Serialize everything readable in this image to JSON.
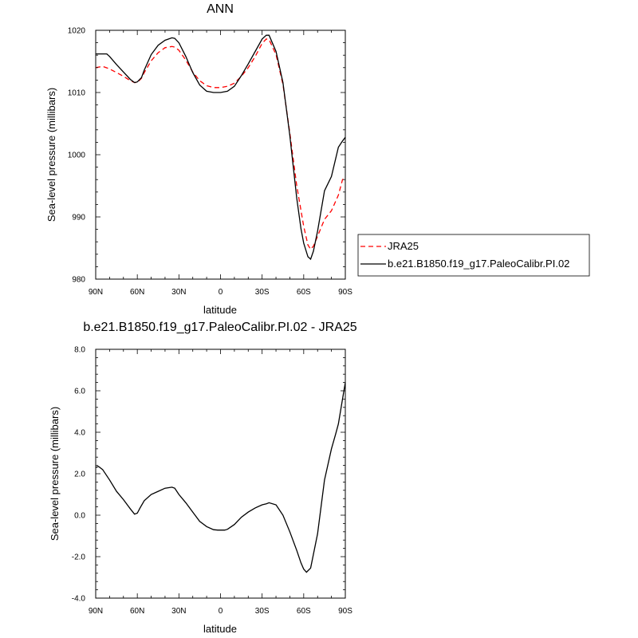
{
  "chart_data": [
    {
      "type": "line",
      "title": "ANN",
      "xlabel": "latitude",
      "ylabel": "Sea-level pressure (millibars)",
      "x_ticks": [
        "90N",
        "60N",
        "30N",
        "0",
        "30S",
        "60S",
        "90S"
      ],
      "y_ticks": [
        "980",
        "990",
        "1000",
        "1010",
        "1020"
      ],
      "xlim": [
        90,
        -90
      ],
      "ylim": [
        980,
        1020
      ],
      "legend_position": "right",
      "series": [
        {
          "name": "JRA25",
          "color": "#ff0000",
          "dash": "dashed",
          "x": [
            90,
            85,
            80,
            75,
            70,
            65,
            62,
            60,
            57,
            55,
            50,
            45,
            40,
            35,
            33,
            30,
            25,
            20,
            15,
            10,
            5,
            0,
            -5,
            -10,
            -15,
            -20,
            -25,
            -30,
            -33,
            -35,
            -40,
            -45,
            -50,
            -55,
            -60,
            -63,
            -65,
            -67,
            -70,
            -75,
            -80,
            -85,
            -88,
            -90
          ],
          "y": [
            1014,
            1014.2,
            1013.8,
            1013.2,
            1012.6,
            1011.9,
            1011.6,
            1011.6,
            1012.3,
            1013.2,
            1015.1,
            1016.4,
            1017.2,
            1017.4,
            1017.3,
            1016.8,
            1015.2,
            1013.3,
            1011.9,
            1011.1,
            1010.8,
            1010.8,
            1011.0,
            1011.5,
            1012.6,
            1014.0,
            1015.8,
            1017.9,
            1018.6,
            1018.5,
            1016.1,
            1011.3,
            1003.5,
            995.0,
            988.5,
            985.5,
            984.8,
            985.3,
            986.9,
            989.6,
            991.0,
            993.5,
            996.0,
            996.3
          ]
        },
        {
          "name": "b.e21.B1850.f19_g17.PaleoCalibr.PI.02",
          "color": "#000000",
          "dash": "solid",
          "x": [
            90,
            85,
            82,
            80,
            75,
            70,
            65,
            62,
            60,
            57,
            55,
            50,
            45,
            40,
            35,
            33,
            30,
            25,
            20,
            15,
            10,
            5,
            0,
            -5,
            -10,
            -15,
            -20,
            -25,
            -30,
            -33,
            -35,
            -40,
            -45,
            -50,
            -55,
            -58,
            -60,
            -63,
            -65,
            -67,
            -70,
            -75,
            -80,
            -85,
            -88,
            -90
          ],
          "y": [
            1016.2,
            1016.2,
            1016.2,
            1015.8,
            1014.5,
            1013.3,
            1012.1,
            1011.6,
            1011.7,
            1012.4,
            1013.6,
            1016.1,
            1017.6,
            1018.4,
            1018.8,
            1018.7,
            1018.0,
            1015.8,
            1013.2,
            1011.2,
            1010.2,
            1010.0,
            1010.0,
            1010.2,
            1011.0,
            1012.7,
            1014.6,
            1016.6,
            1018.6,
            1019.2,
            1019.2,
            1016.6,
            1011.6,
            1003.1,
            993.0,
            988.1,
            985.8,
            983.6,
            983.2,
            984.5,
            987.7,
            994.2,
            996.5,
            1001.2,
            1002.2,
            1002.8
          ]
        }
      ]
    },
    {
      "type": "line",
      "title": "b.e21.B1850.f19_g17.PaleoCalibr.PI.02 - JRA25",
      "xlabel": "latitude",
      "ylabel": "Sea-level pressure (millibars)",
      "x_ticks": [
        "90N",
        "60N",
        "30N",
        "0",
        "30S",
        "60S",
        "90S"
      ],
      "y_ticks": [
        "-4.0",
        "-2.0",
        "0.0",
        "2.0",
        "4.0",
        "6.0",
        "8.0"
      ],
      "xlim": [
        90,
        -90
      ],
      "ylim": [
        -4,
        8
      ],
      "series": [
        {
          "color": "#000000",
          "dash": "solid",
          "x": [
            90,
            88,
            85,
            80,
            75,
            70,
            65,
            62,
            60,
            58,
            55,
            50,
            45,
            40,
            35,
            33,
            30,
            25,
            20,
            15,
            10,
            5,
            2,
            0,
            -3,
            -5,
            -10,
            -15,
            -20,
            -25,
            -30,
            -33,
            -35,
            -40,
            -45,
            -50,
            -55,
            -58,
            -60,
            -62,
            -65,
            -70,
            -75,
            -80,
            -83,
            -85,
            -88,
            -90
          ],
          "y": [
            2.3,
            2.35,
            2.2,
            1.7,
            1.15,
            0.75,
            0.3,
            0.05,
            0.1,
            0.35,
            0.7,
            1.0,
            1.15,
            1.3,
            1.35,
            1.3,
            1.0,
            0.6,
            0.15,
            -0.3,
            -0.55,
            -0.7,
            -0.72,
            -0.72,
            -0.72,
            -0.68,
            -0.45,
            -0.1,
            0.15,
            0.35,
            0.5,
            0.55,
            0.6,
            0.5,
            0.0,
            -0.8,
            -1.7,
            -2.3,
            -2.6,
            -2.75,
            -2.55,
            -0.9,
            1.7,
            3.2,
            3.9,
            4.4,
            5.6,
            6.4
          ]
        }
      ]
    }
  ]
}
